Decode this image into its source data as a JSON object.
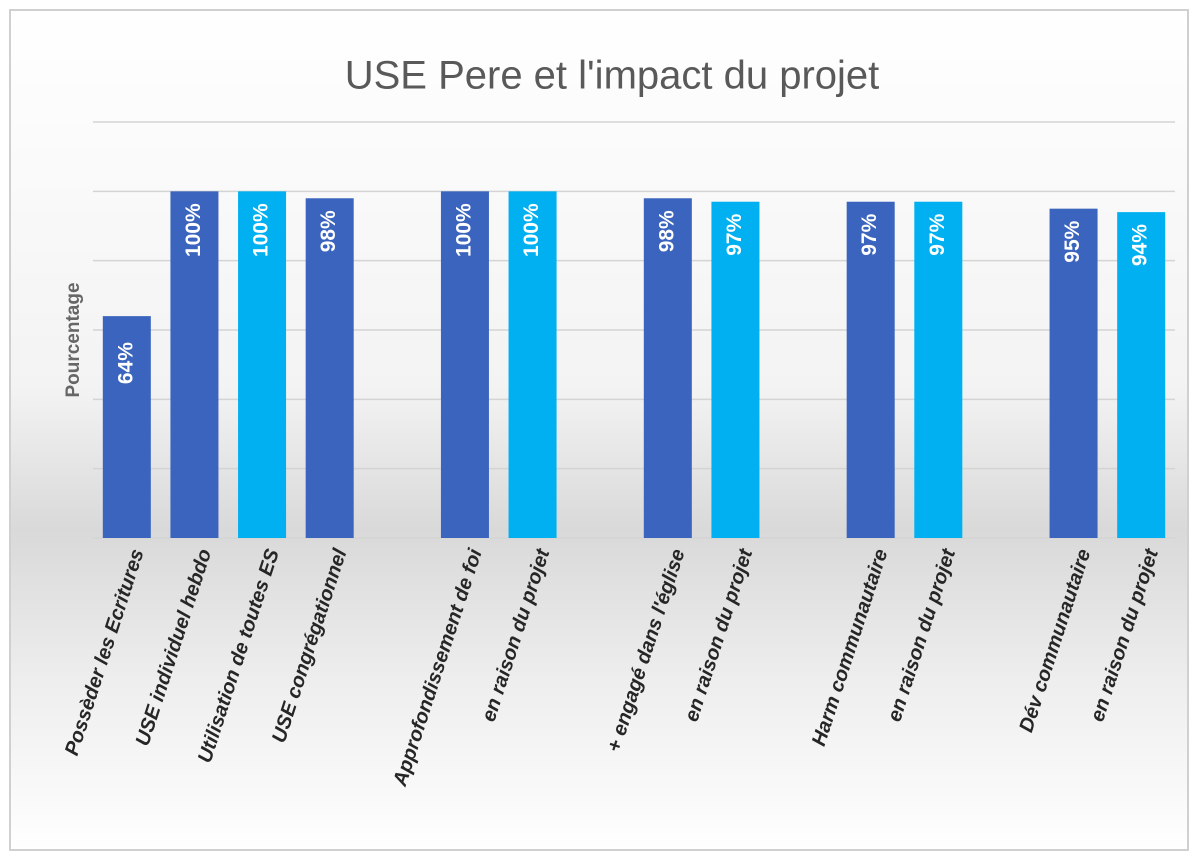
{
  "chart_data": {
    "type": "bar",
    "title": "USE Pere et l'impact du projet",
    "y_label": "Pourcentage",
    "categories": [
      "Possèder les Ecritures",
      "USE individuel hebdo",
      "Utilisation de toutes ES",
      "USE congrégationnel",
      null,
      "Approfondissement de foi",
      "en raison du projet",
      null,
      "+ engagé dans l'église",
      "en raison du projet",
      null,
      "Harm communautaire",
      "en raison du projet",
      null,
      "Dév communautaire",
      "en raison du projet"
    ],
    "values": [
      64,
      100,
      100,
      98,
      null,
      100,
      100,
      null,
      98,
      97,
      null,
      97,
      97,
      null,
      95,
      94
    ],
    "value_labels": [
      "64%",
      "100%",
      "100%",
      "98%",
      null,
      "100%",
      "100%",
      null,
      "98%",
      "97%",
      null,
      "97%",
      "97%",
      null,
      "95%",
      "94%"
    ],
    "colors": [
      "#3a64bd",
      "#3a64bd",
      "#00b0f0",
      "#3a64bd",
      null,
      "#3a64bd",
      "#00b0f0",
      null,
      "#3a64bd",
      "#00b0f0",
      null,
      "#3a64bd",
      "#00b0f0",
      null,
      "#3a64bd",
      "#00b0f0"
    ],
    "ylim": [
      0,
      120
    ],
    "yticks": [
      0,
      20,
      40,
      60,
      80,
      100,
      120
    ],
    "grid": true
  }
}
